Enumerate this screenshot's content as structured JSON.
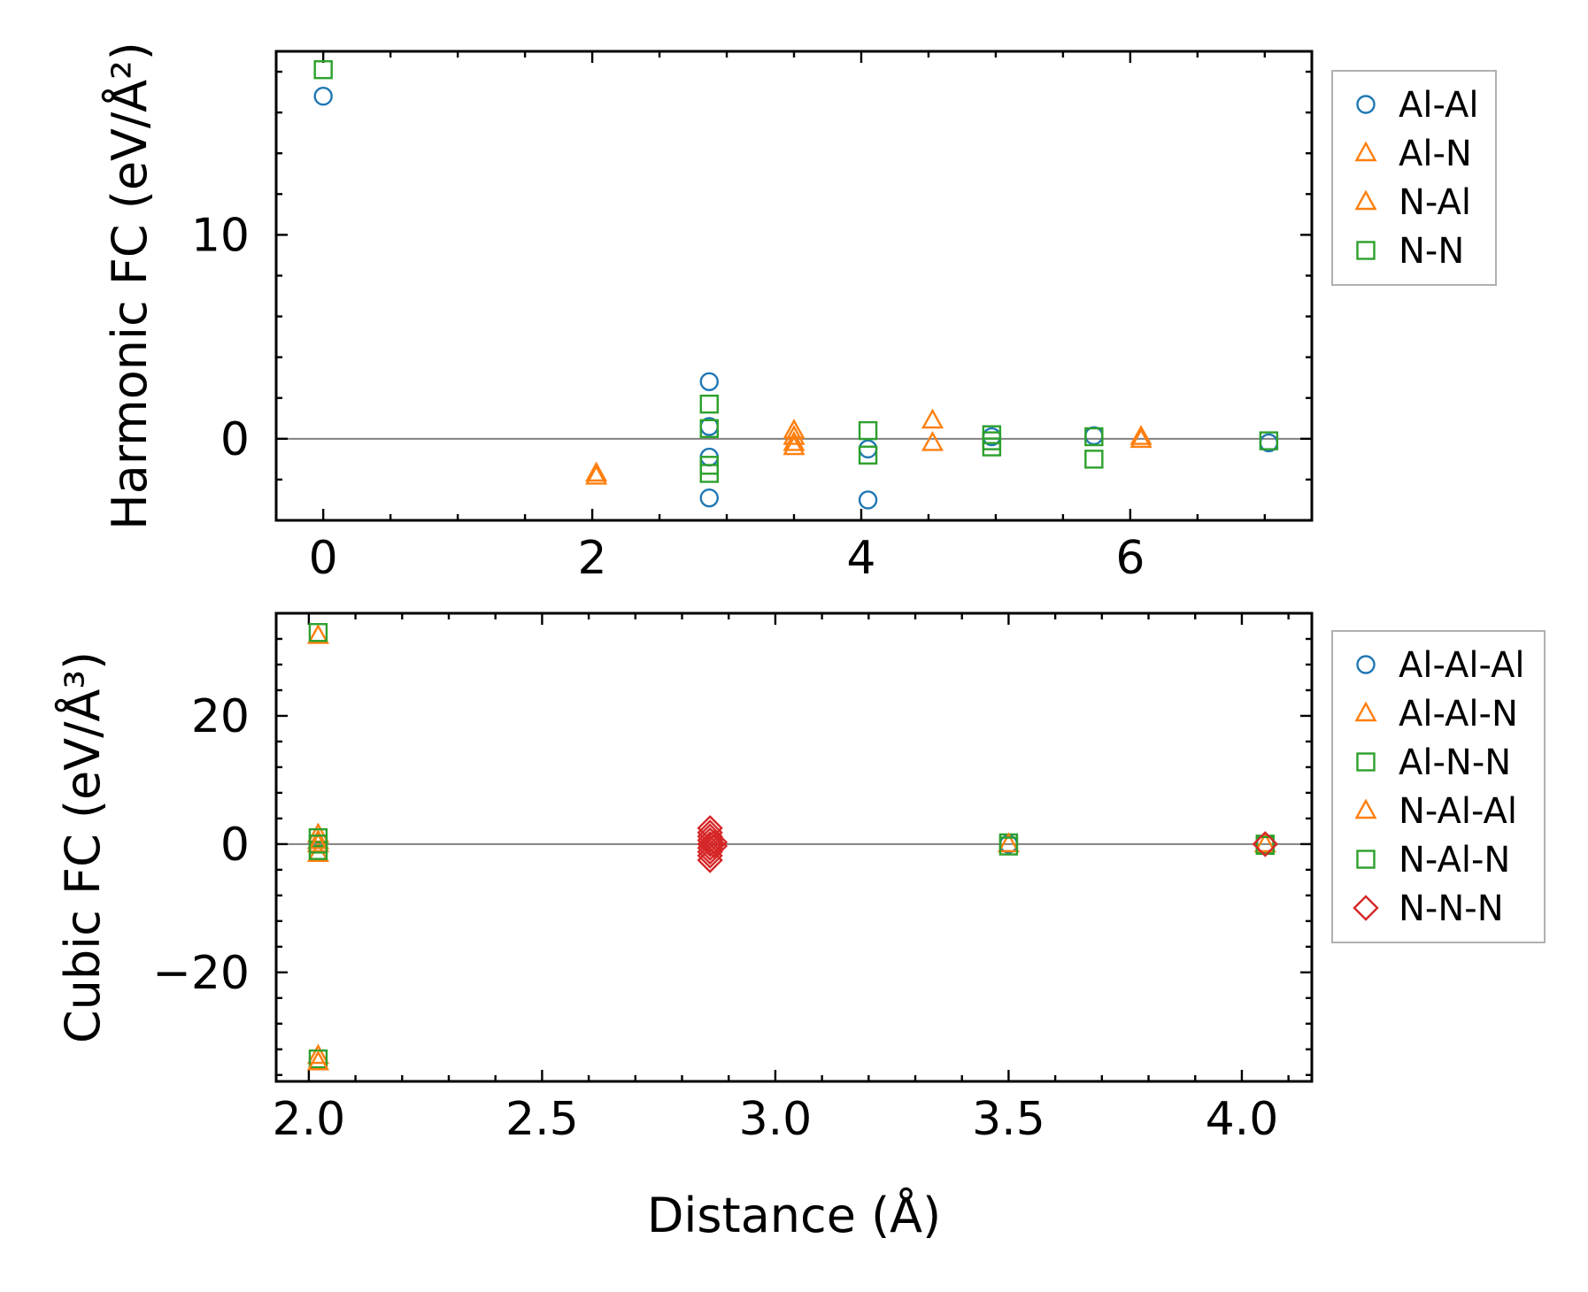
{
  "chart_data": [
    {
      "type": "scatter",
      "id": "harmonic",
      "xlabel": "",
      "ylabel": "Harmonic FC (eV/Å²)",
      "xlim": [
        -0.35,
        7.35
      ],
      "ylim": [
        -4,
        19
      ],
      "xticks": [
        0,
        2,
        4,
        6
      ],
      "xticklabels": [
        "0",
        "2",
        "4",
        "6"
      ],
      "yticks": [
        0,
        10
      ],
      "yticklabels": [
        "0",
        "10"
      ],
      "xminor": 0.5,
      "yminor": 2,
      "legend_location": "outside-right-top",
      "series": [
        {
          "name": "Al-Al",
          "marker": "circle",
          "color": "#1f77b4",
          "points": [
            [
              0,
              16.8
            ],
            [
              2.87,
              2.8
            ],
            [
              2.87,
              0.6
            ],
            [
              2.87,
              -0.9
            ],
            [
              2.87,
              -2.9
            ],
            [
              4.05,
              -0.5
            ],
            [
              4.05,
              -3.0
            ],
            [
              4.97,
              0.1
            ],
            [
              5.73,
              0.15
            ],
            [
              7.03,
              -0.2
            ]
          ]
        },
        {
          "name": "Al-N",
          "marker": "triangle",
          "color": "#ff7f0e",
          "points": [
            [
              2.03,
              -1.7
            ],
            [
              3.5,
              0.4
            ],
            [
              3.5,
              -0.2
            ],
            [
              4.53,
              0.9
            ],
            [
              6.08,
              0.1
            ]
          ]
        },
        {
          "name": "N-Al",
          "marker": "triangle",
          "color": "#ff7f0e",
          "points": [
            [
              2.03,
              -1.85
            ],
            [
              3.5,
              0.1
            ],
            [
              3.5,
              -0.4
            ],
            [
              4.53,
              -0.2
            ],
            [
              6.08,
              -0.05
            ]
          ]
        },
        {
          "name": "N-N",
          "marker": "square",
          "color": "#2ca02c",
          "points": [
            [
              0,
              18.1
            ],
            [
              2.87,
              1.7
            ],
            [
              2.87,
              0.5
            ],
            [
              2.87,
              -1.3
            ],
            [
              2.87,
              -1.7
            ],
            [
              4.05,
              0.4
            ],
            [
              4.05,
              -0.8
            ],
            [
              4.97,
              0.2
            ],
            [
              4.97,
              -0.1
            ],
            [
              4.97,
              -0.4
            ],
            [
              5.73,
              0.1
            ],
            [
              5.73,
              -1.0
            ],
            [
              7.03,
              -0.1
            ]
          ]
        }
      ]
    },
    {
      "type": "scatter",
      "id": "cubic",
      "xlabel": "Distance (Å)",
      "ylabel": "Cubic FC (eV/Å³)",
      "xlim": [
        1.93,
        4.15
      ],
      "ylim": [
        -37,
        36
      ],
      "xticks": [
        2.0,
        2.5,
        3.0,
        3.5,
        4.0
      ],
      "xticklabels": [
        "2.0",
        "2.5",
        "3.0",
        "3.5",
        "4.0"
      ],
      "yticks": [
        -20,
        0,
        20
      ],
      "yticklabels": [
        "−20",
        "0",
        "20"
      ],
      "xminor": 0.1,
      "yminor": 4,
      "legend_location": "outside-right-top",
      "series": [
        {
          "name": "Al-Al-Al",
          "marker": "circle",
          "color": "#1f77b4",
          "points": [
            [
              3.5,
              0.0
            ],
            [
              4.05,
              0.0
            ]
          ]
        },
        {
          "name": "Al-Al-N",
          "marker": "triangle",
          "color": "#ff7f0e",
          "points": [
            [
              2.02,
              32.5
            ],
            [
              2.02,
              -33.0
            ],
            [
              2.02,
              1.5
            ],
            [
              2.02,
              -1.5
            ],
            [
              2.02,
              0.5
            ]
          ]
        },
        {
          "name": "Al-N-N",
          "marker": "square",
          "color": "#2ca02c",
          "points": [
            [
              2.02,
              33.0
            ],
            [
              2.02,
              -33.5
            ],
            [
              2.02,
              1.0
            ],
            [
              2.02,
              -1.0
            ],
            [
              3.5,
              0.2
            ],
            [
              4.05,
              0.0
            ]
          ]
        },
        {
          "name": "N-Al-Al",
          "marker": "triangle",
          "color": "#ff7f0e",
          "points": [
            [
              2.02,
              -34.0
            ],
            [
              2.02,
              0.0
            ],
            [
              3.5,
              0.0
            ],
            [
              4.05,
              0.0
            ]
          ]
        },
        {
          "name": "N-Al-N",
          "marker": "square",
          "color": "#2ca02c",
          "points": [
            [
              2.02,
              0.0
            ],
            [
              3.5,
              -0.3
            ],
            [
              4.05,
              -0.2
            ]
          ]
        },
        {
          "name": "N-N-N",
          "marker": "diamond",
          "color": "#d62728",
          "points": [
            [
              2.86,
              2.5
            ],
            [
              2.86,
              1.8
            ],
            [
              2.86,
              1.2
            ],
            [
              2.86,
              0.6
            ],
            [
              2.86,
              0.0
            ],
            [
              2.86,
              -0.6
            ],
            [
              2.86,
              -1.2
            ],
            [
              2.86,
              -1.8
            ],
            [
              2.86,
              -2.5
            ],
            [
              2.87,
              0.3
            ],
            [
              2.87,
              -0.3
            ],
            [
              4.05,
              0.0
            ]
          ]
        }
      ]
    }
  ]
}
